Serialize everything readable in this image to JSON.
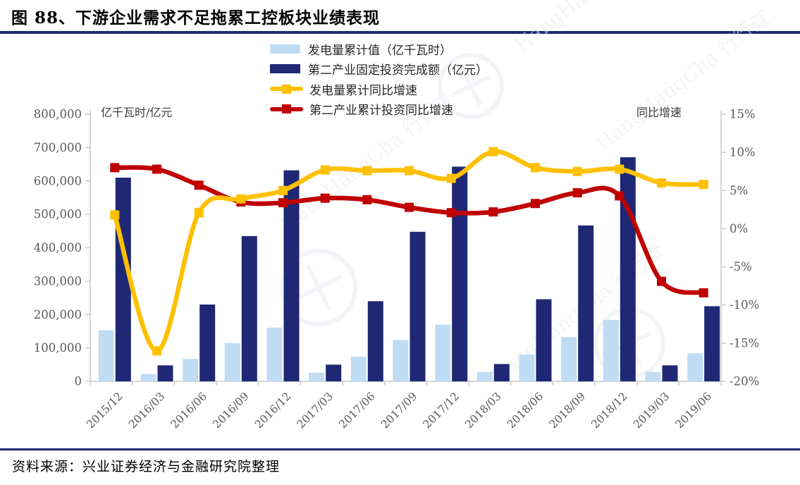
{
  "title": "图 88、下游企业需求不足拖累工控板块业绩表现",
  "source": "资料来源：兴业证券经济与金融研究院整理",
  "watermark_text": "HangHangCha 行行查",
  "colors": {
    "accent_rule": "#1F2876",
    "bar_light_blue": "#BFDCF5",
    "bar_navy": "#1E2875",
    "line_yellow": "#FFC000",
    "line_red": "#C00000",
    "axis_line": "#C9C9C9",
    "tick_text": "#595959",
    "watermark": "#E9ECF2"
  },
  "chart_data": {
    "type": "bar",
    "subtype": "combo-bar-line-dual-axis",
    "categories": [
      "2015/12",
      "2016/03",
      "2016/06",
      "2016/09",
      "2016/12",
      "2017/03",
      "2017/06",
      "2017/09",
      "2017/12",
      "2018/03",
      "2018/06",
      "2018/09",
      "2018/12",
      "2019/03",
      "2019/06"
    ],
    "series": [
      {
        "name": "发电量累计值（亿千瓦时）",
        "type": "bar",
        "axis": "left",
        "color": "#BFDCF5",
        "values": [
          153000,
          22000,
          67000,
          115000,
          161000,
          26000,
          74000,
          124000,
          170000,
          28000,
          80000,
          133000,
          184000,
          28000,
          84000
        ]
      },
      {
        "name": "第二产业固定投资完成额（亿元）",
        "type": "bar",
        "axis": "left",
        "color": "#1E2875",
        "values": [
          610000,
          48000,
          230000,
          435000,
          632000,
          50000,
          240000,
          448000,
          643000,
          52000,
          246000,
          467000,
          671000,
          48000,
          225000
        ]
      },
      {
        "name": "发电量累计同比增速",
        "type": "line",
        "axis": "right",
        "color": "#FFC000",
        "values": [
          1.8,
          -16.0,
          2.1,
          3.9,
          5.0,
          7.7,
          7.6,
          7.6,
          6.6,
          10.1,
          8.0,
          7.5,
          7.8,
          6.0,
          5.8
        ]
      },
      {
        "name": "第二产业累计投资同比增速",
        "type": "line",
        "axis": "right",
        "color": "#C00000",
        "values": [
          8.0,
          7.8,
          5.7,
          3.5,
          3.4,
          4.0,
          3.8,
          2.8,
          2.1,
          2.2,
          3.3,
          4.7,
          4.3,
          -6.9,
          -8.4
        ]
      }
    ],
    "left_axis": {
      "title": "亿千瓦时/亿元",
      "min": 0,
      "max": 800000,
      "step": 100000
    },
    "right_axis": {
      "title": "同比增速",
      "min": -20,
      "max": 15,
      "step": 5,
      "suffix": "%"
    },
    "legend_position": "top-center",
    "grid": false
  }
}
